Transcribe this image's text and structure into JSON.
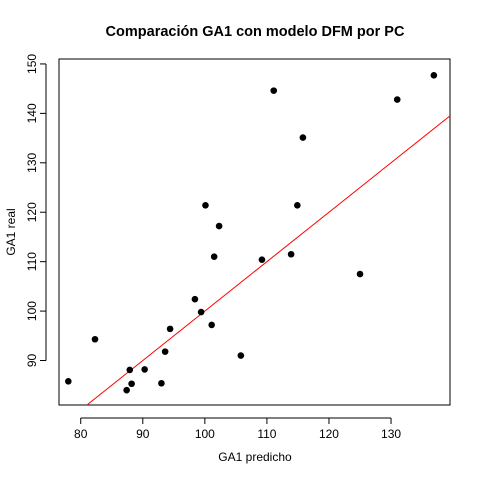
{
  "chart_data": {
    "type": "scatter",
    "title": "Comparación GA1 con modelo DFM por PC",
    "xlabel": "GA1 predicho",
    "ylabel": "GA1 real",
    "xlim": [
      76.5,
      139.5
    ],
    "ylim": [
      81,
      151
    ],
    "xticks": [
      80,
      90,
      100,
      110,
      120,
      130
    ],
    "yticks": [
      90,
      100,
      110,
      120,
      130,
      140,
      150
    ],
    "grid": false,
    "legend": "none",
    "points": [
      {
        "x": 78.0,
        "y": 85.8
      },
      {
        "x": 82.3,
        "y": 94.3
      },
      {
        "x": 87.4,
        "y": 84.0
      },
      {
        "x": 87.9,
        "y": 88.1
      },
      {
        "x": 88.2,
        "y": 85.3
      },
      {
        "x": 90.3,
        "y": 88.2
      },
      {
        "x": 93.0,
        "y": 85.4
      },
      {
        "x": 93.6,
        "y": 91.8
      },
      {
        "x": 94.4,
        "y": 96.4
      },
      {
        "x": 98.4,
        "y": 102.4
      },
      {
        "x": 99.4,
        "y": 99.8
      },
      {
        "x": 100.1,
        "y": 121.4
      },
      {
        "x": 101.1,
        "y": 97.2
      },
      {
        "x": 101.5,
        "y": 111.0
      },
      {
        "x": 102.3,
        "y": 117.2
      },
      {
        "x": 105.8,
        "y": 91.0
      },
      {
        "x": 109.2,
        "y": 110.4
      },
      {
        "x": 111.1,
        "y": 144.6
      },
      {
        "x": 113.9,
        "y": 111.5
      },
      {
        "x": 114.9,
        "y": 121.4
      },
      {
        "x": 115.8,
        "y": 135.1
      },
      {
        "x": 125.0,
        "y": 107.5
      },
      {
        "x": 131.0,
        "y": 142.8
      },
      {
        "x": 136.9,
        "y": 147.7
      }
    ],
    "reference_line": {
      "type": "identity",
      "slope": 1,
      "intercept": 0
    },
    "colors": {
      "points": "#000000",
      "line": "#ff0000",
      "axes": "#000000"
    }
  }
}
